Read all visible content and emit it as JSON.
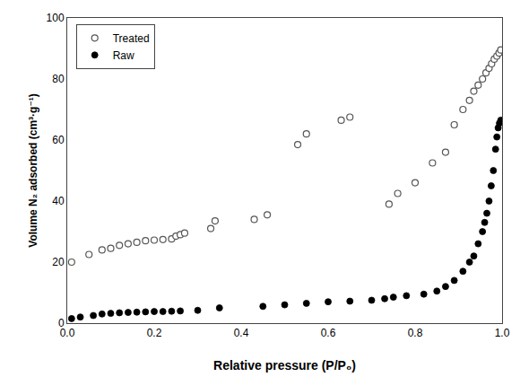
{
  "chart_data": {
    "type": "scatter",
    "xlabel": "Relative pressure (P/P₀)",
    "ylabel": "Volume N₂ adsorbed (cm³·g⁻¹)",
    "series": [
      {
        "name": "Treated",
        "color": "#555555",
        "marker": "circle-open",
        "x": [
          0.01,
          0.05,
          0.08,
          0.1,
          0.12,
          0.14,
          0.16,
          0.18,
          0.2,
          0.22,
          0.24,
          0.25,
          0.26,
          0.27,
          0.33,
          0.34,
          0.43,
          0.46,
          0.53,
          0.55,
          0.63,
          0.65,
          0.74,
          0.76,
          0.8,
          0.84,
          0.87,
          0.89,
          0.91,
          0.925,
          0.935,
          0.945,
          0.955,
          0.963,
          0.97,
          0.976,
          0.982,
          0.988,
          0.993,
          0.997
        ],
        "values": [
          20.0,
          22.5,
          24.0,
          24.5,
          25.5,
          26.0,
          26.5,
          27.0,
          27.2,
          27.4,
          27.6,
          28.5,
          29.0,
          29.5,
          31.0,
          33.5,
          34.0,
          35.5,
          58.5,
          62.0,
          66.5,
          67.5,
          39.0,
          42.5,
          46.0,
          52.5,
          56.0,
          65.0,
          70.0,
          73.0,
          76.0,
          78.0,
          80.0,
          82.0,
          83.5,
          85.0,
          86.5,
          87.5,
          88.5,
          89.5
        ]
      },
      {
        "name": "Raw",
        "color": "#000000",
        "marker": "circle",
        "x": [
          0.01,
          0.03,
          0.06,
          0.08,
          0.1,
          0.12,
          0.14,
          0.16,
          0.18,
          0.2,
          0.22,
          0.24,
          0.26,
          0.3,
          0.35,
          0.45,
          0.5,
          0.55,
          0.6,
          0.65,
          0.7,
          0.73,
          0.75,
          0.78,
          0.82,
          0.85,
          0.87,
          0.89,
          0.91,
          0.925,
          0.935,
          0.945,
          0.955,
          0.96,
          0.965,
          0.97,
          0.975,
          0.98,
          0.985,
          0.988,
          0.991,
          0.994,
          0.997
        ],
        "values": [
          1.5,
          2.0,
          2.5,
          3.0,
          3.2,
          3.4,
          3.5,
          3.6,
          3.7,
          3.8,
          3.8,
          3.9,
          4.0,
          4.2,
          5.0,
          5.5,
          6.0,
          6.5,
          7.0,
          7.2,
          7.5,
          8.0,
          8.5,
          9.0,
          9.5,
          10.5,
          12.0,
          14.0,
          17.0,
          20.0,
          22.0,
          26.0,
          30.0,
          33.0,
          36.0,
          40.0,
          45.0,
          50.0,
          57.0,
          61.0,
          64.0,
          65.5,
          66.5
        ]
      }
    ],
    "xlim": [
      0.0,
      1.0
    ],
    "ylim": [
      0,
      100
    ],
    "xticks": [
      {
        "value": 0.0,
        "label": "0.0"
      },
      0.2,
      0.4,
      0.6,
      0.8,
      {
        "value": 1.0,
        "label": "1.0"
      }
    ],
    "yticks": [
      0,
      20,
      40,
      60,
      80,
      100
    ],
    "grid": false,
    "legend": "upper left"
  }
}
